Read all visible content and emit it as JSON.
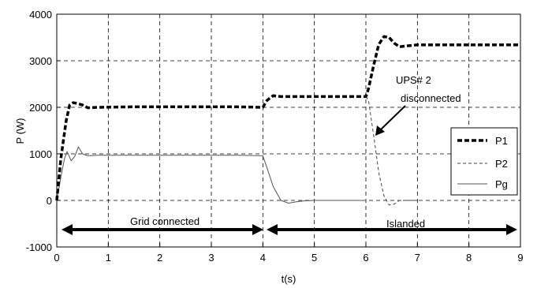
{
  "chart_data": {
    "type": "line",
    "xlabel": "t(s)",
    "ylabel": "P (W)",
    "xlim": [
      0,
      9
    ],
    "ylim": [
      -1000,
      4000
    ],
    "xticks": [
      0,
      1,
      2,
      3,
      4,
      5,
      6,
      7,
      8,
      9
    ],
    "yticks": [
      -1000,
      0,
      1000,
      2000,
      3000,
      4000
    ],
    "grid": true,
    "legend_position": "right",
    "series": [
      {
        "name": "P1",
        "style": "thick-dashed",
        "color": "#000000",
        "x": [
          0,
          0.08,
          0.18,
          0.25,
          0.32,
          0.4,
          0.5,
          0.6,
          0.8,
          1.5,
          2.5,
          3.5,
          4.0,
          4.08,
          4.2,
          4.35,
          4.5,
          5.0,
          5.5,
          6.0,
          6.05,
          6.15,
          6.25,
          6.35,
          6.45,
          6.55,
          6.65,
          6.8,
          7.0,
          8.0,
          9.0
        ],
        "y": [
          0,
          900,
          1700,
          2050,
          2100,
          2080,
          2050,
          1990,
          2000,
          2010,
          2010,
          2010,
          2000,
          2150,
          2250,
          2230,
          2230,
          2230,
          2230,
          2230,
          2400,
          2900,
          3350,
          3520,
          3500,
          3380,
          3300,
          3320,
          3340,
          3340,
          3340
        ]
      },
      {
        "name": "P2",
        "style": "dashed",
        "color": "#444444",
        "x": [
          6.0,
          6.05,
          6.15,
          6.25,
          6.35,
          6.45,
          6.55,
          6.65,
          6.8,
          7.0
        ],
        "y": [
          2230,
          2150,
          1400,
          600,
          100,
          -100,
          -80,
          0,
          0,
          0
        ]
      },
      {
        "name": "Pg",
        "style": "solid",
        "color": "#555555",
        "x": [
          0,
          0.08,
          0.15,
          0.2,
          0.28,
          0.35,
          0.42,
          0.5,
          0.6,
          0.8,
          1.5,
          2.5,
          3.5,
          4.0,
          4.08,
          4.2,
          4.35,
          4.5,
          4.65,
          4.8,
          5.0,
          6.0
        ],
        "y": [
          0,
          500,
          900,
          1050,
          850,
          950,
          1150,
          1000,
          960,
          970,
          970,
          970,
          970,
          960,
          700,
          300,
          0,
          -60,
          -30,
          -10,
          0,
          0
        ]
      }
    ],
    "annotations": [
      {
        "text": "UPS# 2",
        "line": 1
      },
      {
        "text": "disconnected",
        "line": 2
      },
      {
        "text": "Grid connected",
        "x_from": 0,
        "x_to": 4
      },
      {
        "text": "Islanded",
        "x_from": 4,
        "x_to": 9
      }
    ]
  }
}
